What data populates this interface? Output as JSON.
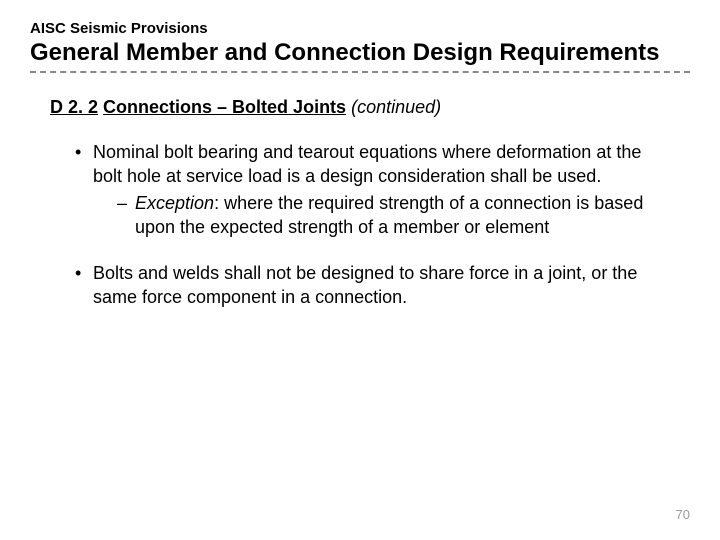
{
  "header": {
    "overline": "AISC Seismic Provisions",
    "title": "General Member and Connection Design Requirements"
  },
  "section": {
    "code": "D 2. 2",
    "name": "Connections – Bolted Joints",
    "suffix": "(continued)"
  },
  "bullets": [
    {
      "text": "Nominal bolt bearing and tearout equations where deformation at the bolt hole at service load is a design consideration shall be used.",
      "sub": {
        "label": "Exception",
        "text": ": where the required strength of a connection is based upon the expected strength of a member or element"
      }
    },
    {
      "text": "Bolts and welds shall not be designed to share force in a joint, or the same force component in a connection."
    }
  ],
  "page_number": "70",
  "style": {
    "background": "#ffffff",
    "text_color": "#000000",
    "page_num_color": "#9a9a9a",
    "divider_color": "#888888",
    "overline_fontsize": 15,
    "title_fontsize": 24,
    "heading_fontsize": 18,
    "body_fontsize": 18
  }
}
